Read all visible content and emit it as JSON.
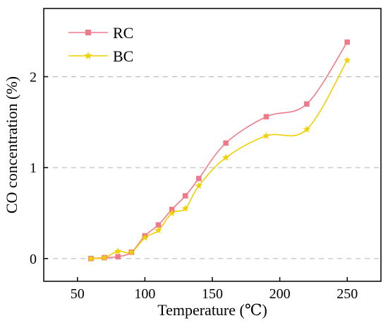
{
  "chart_data": {
    "type": "line",
    "title": "",
    "xlabel": "Temperature (℃)",
    "ylabel": "CO concentration (%)",
    "xlim": [
      25,
      275
    ],
    "ylim": [
      -0.25,
      2.75
    ],
    "xticks": [
      50,
      100,
      150,
      200,
      250
    ],
    "yticks": [
      0,
      1,
      2
    ],
    "grid": "horizontal dashed at y ticks",
    "legend": "top-left",
    "series": [
      {
        "name": "RC",
        "color": "#f07a8a",
        "marker": "square",
        "x": [
          60,
          70,
          80,
          90,
          100,
          110,
          120,
          130,
          140,
          160,
          190,
          220,
          250
        ],
        "y": [
          0.0,
          0.01,
          0.02,
          0.07,
          0.25,
          0.37,
          0.54,
          0.69,
          0.88,
          1.27,
          1.56,
          1.7,
          2.38
        ]
      },
      {
        "name": "BC",
        "color": "#f0d000",
        "marker": "star",
        "x": [
          60,
          70,
          80,
          90,
          100,
          110,
          120,
          130,
          140,
          160,
          190,
          220,
          250
        ],
        "y": [
          0.0,
          0.01,
          0.08,
          0.07,
          0.23,
          0.31,
          0.5,
          0.55,
          0.8,
          1.11,
          1.35,
          1.42,
          2.18
        ]
      }
    ]
  }
}
